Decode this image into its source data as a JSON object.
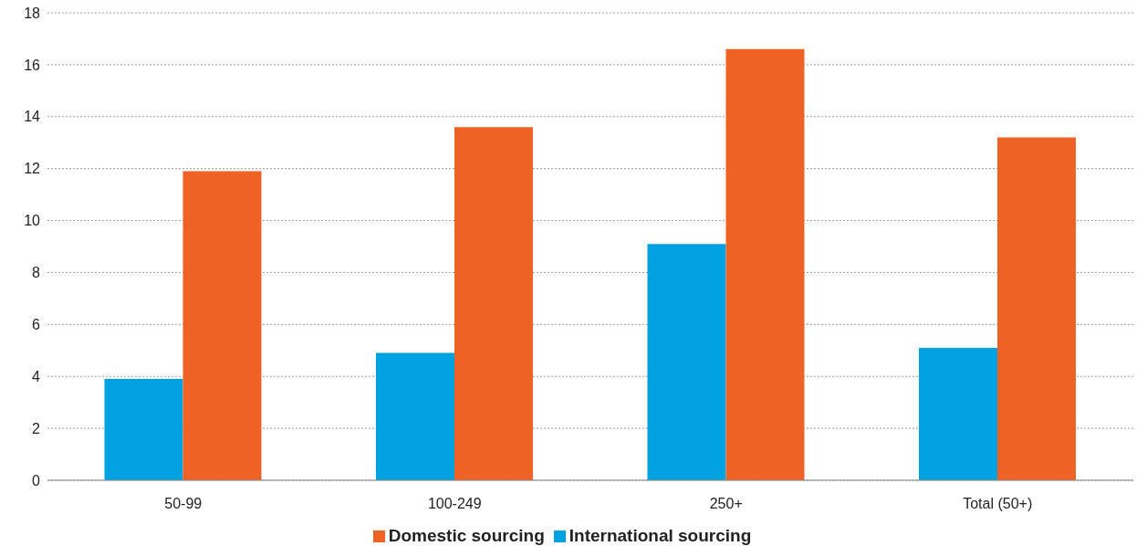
{
  "chart_data": {
    "type": "bar",
    "categories": [
      "50-99",
      "100-249",
      "250+",
      "Total (50+)"
    ],
    "series": [
      {
        "name": "International sourcing",
        "color": "#00a3e0",
        "values": [
          3.9,
          4.9,
          9.1,
          5.1
        ]
      },
      {
        "name": "Domestic sourcing",
        "color": "#ee6325",
        "values": [
          11.9,
          13.6,
          16.6,
          13.2
        ]
      }
    ],
    "ylim": [
      0,
      18
    ],
    "yticks": [
      0,
      2,
      4,
      6,
      8,
      10,
      12,
      14,
      16,
      18
    ],
    "grid": "y",
    "legend": "bottom"
  }
}
